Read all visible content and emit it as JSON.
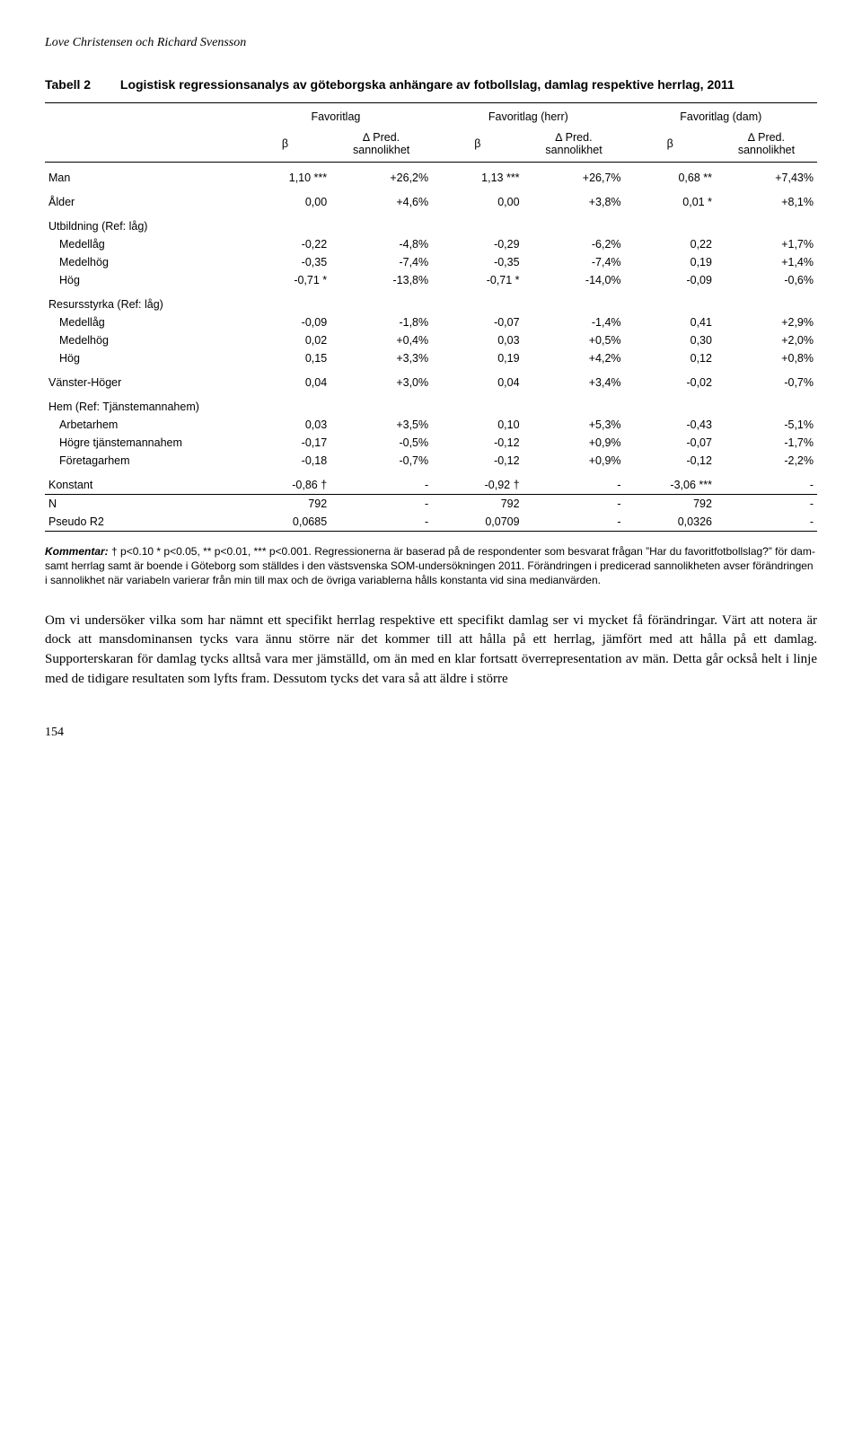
{
  "header": "Love Christensen och Richard Svensson",
  "tableTitle": {
    "label": "Tabell 2",
    "desc": "Logistisk regressionsanalys av göteborgska anhängare av fotbollslag, damlag respektive herrlag, 2011"
  },
  "columns": {
    "group1": "Favoritlag",
    "group2": "Favoritlag (herr)",
    "group3": "Favoritlag (dam)",
    "beta": "β",
    "pred": "∆ Pred. sannolikhet"
  },
  "rows": [
    {
      "type": "data",
      "label": "Man",
      "b1": "1,10 ***",
      "p1": "+26,2%",
      "b2": "1,13 ***",
      "p2": "+26,7%",
      "b3": "0,68 **",
      "p3": "+7,43%",
      "padTop": true
    },
    {
      "type": "data",
      "label": "Ålder",
      "b1": "0,00",
      "p1": "+4,6%",
      "b2": "0,00",
      "p2": "+3,8%",
      "b3": "0,01 *",
      "p3": "+8,1%",
      "padTop": true
    },
    {
      "type": "section",
      "label": "Utbildning (Ref: låg)"
    },
    {
      "type": "data",
      "indent": true,
      "label": "Medellåg",
      "b1": "-0,22",
      "p1": "-4,8%",
      "b2": "-0,29",
      "p2": "-6,2%",
      "b3": "0,22",
      "p3": "+1,7%"
    },
    {
      "type": "data",
      "indent": true,
      "label": "Medelhög",
      "b1": "-0,35",
      "p1": "-7,4%",
      "b2": "-0,35",
      "p2": "-7,4%",
      "b3": "0,19",
      "p3": "+1,4%"
    },
    {
      "type": "data",
      "indent": true,
      "label": "Hög",
      "b1": "-0,71 *",
      "p1": "-13,8%",
      "b2": "-0,71 *",
      "p2": "-14,0%",
      "b3": "-0,09",
      "p3": "-0,6%"
    },
    {
      "type": "section",
      "label": "Resursstyrka (Ref: låg)"
    },
    {
      "type": "data",
      "indent": true,
      "label": "Medellåg",
      "b1": "-0,09",
      "p1": "-1,8%",
      "b2": "-0,07",
      "p2": "-1,4%",
      "b3": "0,41",
      "p3": "+2,9%"
    },
    {
      "type": "data",
      "indent": true,
      "label": "Medelhög",
      "b1": "0,02",
      "p1": "+0,4%",
      "b2": "0,03",
      "p2": "+0,5%",
      "b3": "0,30",
      "p3": "+2,0%"
    },
    {
      "type": "data",
      "indent": true,
      "label": "Hög",
      "b1": "0,15",
      "p1": "+3,3%",
      "b2": "0,19",
      "p2": "+4,2%",
      "b3": "0,12",
      "p3": "+0,8%"
    },
    {
      "type": "data",
      "label": "Vänster-Höger",
      "b1": "0,04",
      "p1": "+3,0%",
      "b2": "0,04",
      "p2": "+3,4%",
      "b3": "-0,02",
      "p3": "-0,7%",
      "padTop": true
    },
    {
      "type": "section",
      "label": "Hem (Ref: Tjänstemannahem)"
    },
    {
      "type": "data",
      "indent": true,
      "label": "Arbetarhem",
      "b1": "0,03",
      "p1": "+3,5%",
      "b2": "0,10",
      "p2": "+5,3%",
      "b3": "-0,43",
      "p3": "-5,1%"
    },
    {
      "type": "data",
      "indent": true,
      "label": "Högre tjänstemannahem",
      "b1": "-0,17",
      "p1": "-0,5%",
      "b2": "-0,12",
      "p2": "+0,9%",
      "b3": "-0,07",
      "p3": "-1,7%"
    },
    {
      "type": "data",
      "indent": true,
      "label": "Företagarhem",
      "b1": "-0,18",
      "p1": "-0,7%",
      "b2": "-0,12",
      "p2": "+0,9%",
      "b3": "-0,12",
      "p3": "-2,2%"
    },
    {
      "type": "data",
      "label": "Konstant",
      "b1": "-0,86 †",
      "p1": "-",
      "b2": "-0,92 †",
      "p2": "-",
      "b3": "-3,06 ***",
      "p3": "-",
      "padTop": true,
      "ruleBelow": true
    },
    {
      "type": "data",
      "label": "N",
      "b1": "792",
      "p1": "-",
      "b2": "792",
      "p2": "-",
      "b3": "792",
      "p3": "-"
    },
    {
      "type": "data",
      "label": "Pseudo R2",
      "b1": "0,0685",
      "p1": "-",
      "b2": "0,0709",
      "p2": "-",
      "b3": "0,0326",
      "p3": "-",
      "ruleBelow": true
    }
  ],
  "commentary": {
    "lead": "Kommentar:",
    "text": " † p<0.10 * p<0.05, ** p<0.01, *** p<0.001. Regressionerna är baserad på de respondenter som besvarat frågan ”Har du favoritfotbollslag?” för dam- samt herrlag samt är boende i Göteborg som ställdes i den västsvenska SOM-undersökningen 2011. Förändringen i predicerad sannolikheten avser förändringen i sannolikhet när variabeln varierar från min till max och de övriga variablerna hålls konstanta vid sina medianvärden."
  },
  "bodyText": "Om vi undersöker vilka som har nämnt ett specifikt herrlag respektive ett specifikt damlag ser vi mycket få förändringar. Värt att notera är dock att mansdominansen tycks vara ännu större när det kommer till att hålla på ett herrlag, jämfört med att hålla på ett damlag. Supporterskaran för damlag tycks alltså vara mer jämställd, om än med en klar fortsatt överrepresentation av män. Detta går också helt i linje med de tidigare resultaten som lyfts fram. Dessutom tycks det vara så att äldre i större",
  "pageNum": "154"
}
